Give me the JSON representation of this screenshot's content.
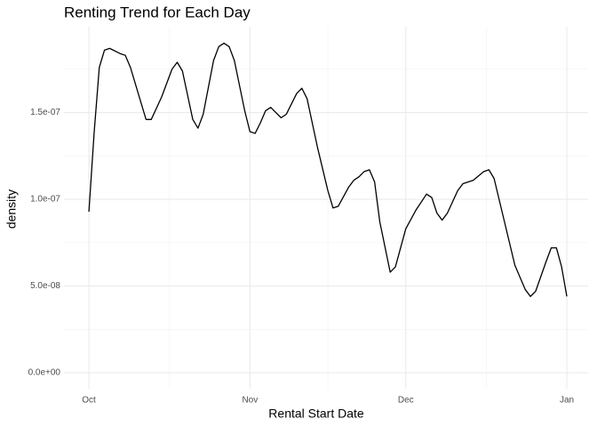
{
  "chart_data": {
    "type": "line",
    "title": "Renting Trend for Each Day",
    "x_label": "Rental Start Date",
    "y_label": "density",
    "x": [
      0,
      1,
      2,
      3,
      4,
      6,
      7,
      8,
      10,
      11,
      12,
      14,
      16,
      17,
      18,
      20,
      21,
      22,
      24,
      25,
      26,
      27,
      28,
      30,
      31,
      32,
      33,
      34,
      35,
      36,
      37,
      38,
      40,
      41,
      42,
      44,
      46,
      47,
      48,
      50,
      51,
      52,
      53,
      54,
      55,
      56,
      58,
      59,
      61,
      63,
      65,
      66,
      67,
      68,
      69,
      71,
      72,
      74,
      76,
      77,
      78,
      80,
      82,
      84,
      85,
      86,
      88,
      89,
      90,
      91,
      92
    ],
    "values": [
      9.28e-08,
      1.38e-07,
      1.76e-07,
      1.86e-07,
      1.87e-07,
      1.84e-07,
      1.83e-07,
      1.76e-07,
      1.56e-07,
      1.46e-07,
      1.46e-07,
      1.59e-07,
      1.75e-07,
      1.79e-07,
      1.74e-07,
      1.46e-07,
      1.41e-07,
      1.49e-07,
      1.8e-07,
      1.88e-07,
      1.9e-07,
      1.88e-07,
      1.8e-07,
      1.51e-07,
      1.39e-07,
      1.38e-07,
      1.44e-07,
      1.51e-07,
      1.53e-07,
      1.5e-07,
      1.47e-07,
      1.49e-07,
      1.61e-07,
      1.64e-07,
      1.58e-07,
      1.3e-07,
      1.05e-07,
      9.5e-08,
      9.6e-08,
      1.07e-07,
      1.11e-07,
      1.13e-07,
      1.16e-07,
      1.17e-07,
      1.1e-07,
      8.7e-08,
      5.8e-08,
      6.1e-08,
      8.3e-08,
      9.4e-08,
      1.03e-07,
      1.01e-07,
      9.2e-08,
      8.8e-08,
      9.2e-08,
      1.05e-07,
      1.09e-07,
      1.11e-07,
      1.16e-07,
      1.17e-07,
      1.12e-07,
      8.7e-08,
      6.2e-08,
      4.8e-08,
      4.4e-08,
      4.7e-08,
      6.4e-08,
      7.2e-08,
      7.2e-08,
      6.1e-08,
      4.4e-08
    ],
    "color": "#000000",
    "xlim": [
      -4.8,
      96.1
    ],
    "ylim": [
      -9.2e-09,
      1.995e-07
    ],
    "xticks": [
      {
        "value": 0,
        "label": "Oct"
      },
      {
        "value": 31,
        "label": "Nov"
      },
      {
        "value": 61,
        "label": "Dec"
      },
      {
        "value": 92,
        "label": "Jan"
      }
    ],
    "yticks": [
      {
        "value": 0,
        "label": "0.0e+00"
      },
      {
        "value": 5e-08,
        "label": "5.0e-08"
      },
      {
        "value": 1e-07,
        "label": "1.0e-07"
      },
      {
        "value": 1.5e-07,
        "label": "1.5e-07"
      }
    ],
    "x_minor_grid": [
      15.5,
      46,
      76.5
    ],
    "y_minor_grid": [
      2.5e-08,
      7.5e-08,
      1.25e-07,
      1.75e-07
    ],
    "grid": true
  }
}
